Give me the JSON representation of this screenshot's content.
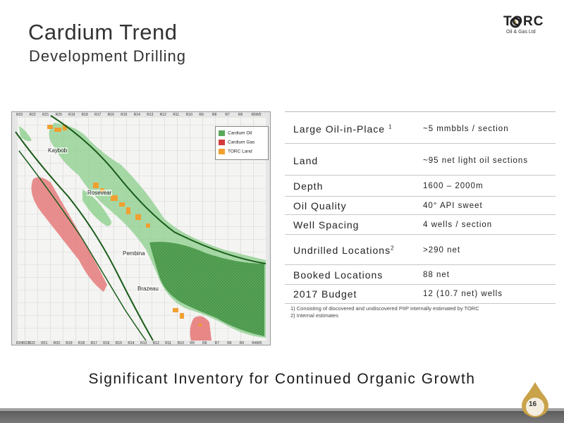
{
  "title": "Cardium Trend",
  "subtitle": "Development Drilling",
  "logo": {
    "name": "TORC",
    "tagline": "Oil & Gas Ltd"
  },
  "map": {
    "legend": [
      {
        "label": "Cardium Oil",
        "color": "#5aa85a"
      },
      {
        "label": "Cardium Gas",
        "color": "#d23c3c"
      },
      {
        "label": "TORC Land",
        "color": "#f0a030"
      }
    ],
    "place_labels": [
      "Kaybob",
      "Rosevear",
      "Pembina",
      "Brazeau"
    ],
    "range_labels_top": [
      "R23",
      "R22",
      "R21",
      "R20",
      "R19",
      "R18",
      "R17",
      "R16",
      "R15",
      "R14",
      "R13",
      "R12",
      "R11",
      "R10",
      "R9",
      "R8",
      "R7",
      "R6",
      "R5W5"
    ],
    "range_labels_bottom": [
      "R24R23",
      "R22",
      "R21",
      "R20",
      "R19",
      "R18",
      "R17",
      "R16",
      "R15",
      "R14",
      "R13",
      "R12",
      "R11",
      "R10",
      "R9",
      "R8",
      "R7",
      "R6",
      "R5",
      "R4W5"
    ]
  },
  "table": {
    "rows": [
      {
        "label": "Large Oil-in-Place",
        "sup": "1",
        "value": "~5 mmbbls / section"
      },
      {
        "label": "Land",
        "sup": "",
        "value": "~95 net light oil sections"
      },
      {
        "label": "Depth",
        "sup": "",
        "value": "1600 – 2000m"
      },
      {
        "label": "Oil Quality",
        "sup": "",
        "value": "40° API sweet"
      },
      {
        "label": "Well Spacing",
        "sup": "",
        "value": "4 wells / section"
      },
      {
        "label": "Undrilled Locations",
        "sup": "2",
        "value": ">290 net"
      },
      {
        "label": "Booked Locations",
        "sup": "",
        "value": "88 net"
      },
      {
        "label": "2017 Budget",
        "sup": "",
        "value": "12 (10.7 net) wells"
      }
    ]
  },
  "notes": [
    "1)   Consisting of discovered and undiscovered PIIP internally estimated by TORC",
    "2)   Internal estimates"
  ],
  "tagline": "Significant Inventory for Continued Organic Growth",
  "page_number": "16"
}
